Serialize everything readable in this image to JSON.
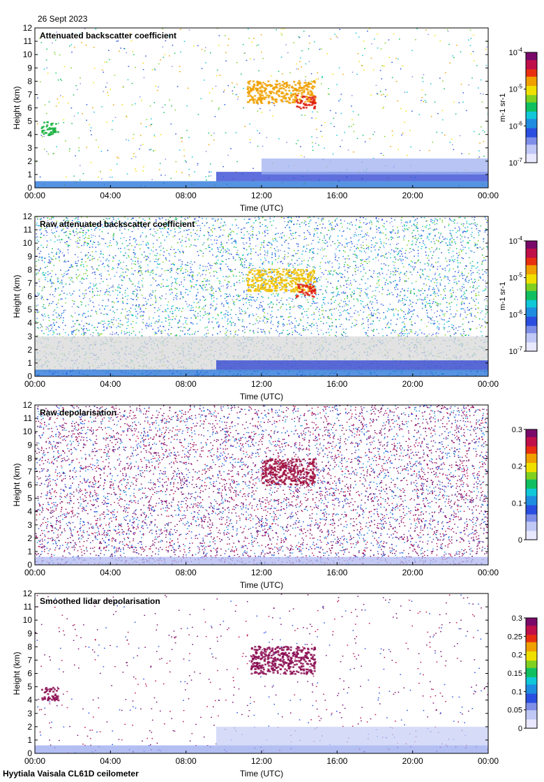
{
  "date_label": "26 Sept 2023",
  "footer_label": "Hyytiala Vaisala CL61D ceilometer",
  "chart_data": [
    {
      "type": "heatmap",
      "title": "Attenuated backscatter coefficient",
      "xlabel": "Time (UTC)",
      "ylabel": "Height (km)",
      "xlim_hours": [
        0,
        24
      ],
      "ylim": [
        0,
        12
      ],
      "xticks": [
        "00:00",
        "04:00",
        "08:00",
        "12:00",
        "16:00",
        "20:00",
        "00:00"
      ],
      "yticks": [
        0,
        1,
        2,
        3,
        4,
        5,
        6,
        7,
        8,
        9,
        10,
        11,
        12
      ],
      "colorbar": {
        "scale": "log",
        "ticks": [
          "10^-7",
          "10^-6",
          "10^-5",
          "10^-4"
        ],
        "unit": "m-1 sr-1",
        "palette": "white-blue-cyan-green-yellow-red-purple"
      },
      "background_noise": "sparse",
      "features": [
        {
          "name": "boundary-layer",
          "t0": 0,
          "t1": 24,
          "h0": 0,
          "h1": 0.5,
          "color": "#1e6fd8"
        },
        {
          "name": "boundary-layer-top",
          "t0": 9.6,
          "t1": 24,
          "h0": 0.5,
          "h1": 1.2,
          "color": "#2a3fd0"
        },
        {
          "name": "residual-layer",
          "t0": 12,
          "t1": 24,
          "h0": 1.0,
          "h1": 2.2,
          "color": "#9fb0f0"
        },
        {
          "name": "high-cloud",
          "t0": 11.2,
          "t1": 14.8,
          "h0": 6.4,
          "h1": 8.1,
          "color": "#f0a000"
        },
        {
          "name": "high-cloud-core",
          "t0": 13.8,
          "t1": 14.8,
          "h0": 6.0,
          "h1": 7.0,
          "color": "#e02010"
        },
        {
          "name": "mid-cloud",
          "t0": 0.3,
          "t1": 1.2,
          "h0": 4.0,
          "h1": 5.0,
          "color": "#19b040"
        }
      ]
    },
    {
      "type": "heatmap",
      "title": "Raw attenuated backscatter coefficient",
      "xlabel": "Time (UTC)",
      "ylabel": "Height (km)",
      "xlim_hours": [
        0,
        24
      ],
      "ylim": [
        0,
        12
      ],
      "xticks": [
        "00:00",
        "04:00",
        "08:00",
        "12:00",
        "16:00",
        "20:00",
        "00:00"
      ],
      "yticks": [
        0,
        1,
        2,
        3,
        4,
        5,
        6,
        7,
        8,
        9,
        10,
        11,
        12
      ],
      "colorbar": {
        "scale": "log",
        "ticks": [
          "10^-7",
          "10^-6",
          "10^-5",
          "10^-4"
        ],
        "unit": "m-1 sr-1",
        "palette": "white-blue-cyan-green-yellow-red-purple"
      },
      "background_noise": "dense-blue-green",
      "features": [
        {
          "name": "gray-noise-band",
          "t0": 0,
          "t1": 24,
          "h0": 0.4,
          "h1": 3.0,
          "color": "#d8d8d8"
        },
        {
          "name": "boundary-layer",
          "t0": 0,
          "t1": 24,
          "h0": 0,
          "h1": 0.5,
          "color": "#1e6fd8"
        },
        {
          "name": "boundary-layer-top",
          "t0": 9.6,
          "t1": 24,
          "h0": 0.5,
          "h1": 1.2,
          "color": "#2a3fd0"
        },
        {
          "name": "high-cloud",
          "t0": 11.2,
          "t1": 14.8,
          "h0": 6.4,
          "h1": 8.1,
          "color": "#f0c000"
        },
        {
          "name": "high-cloud-core",
          "t0": 13.8,
          "t1": 14.8,
          "h0": 6.0,
          "h1": 7.0,
          "color": "#e02010"
        }
      ]
    },
    {
      "type": "heatmap",
      "title": "Raw depolarisation",
      "xlabel": "Time (UTC)",
      "ylabel": "Height (km)",
      "xlim_hours": [
        0,
        24
      ],
      "ylim": [
        0,
        12
      ],
      "xticks": [
        "00:00",
        "04:00",
        "08:00",
        "12:00",
        "16:00",
        "20:00",
        "00:00"
      ],
      "yticks": [
        0,
        1,
        2,
        3,
        4,
        5,
        6,
        7,
        8,
        9,
        10,
        11,
        12
      ],
      "colorbar": {
        "scale": "linear",
        "ticks": [
          "0",
          "0.1",
          "0.2",
          "0.3"
        ],
        "unit": "",
        "palette": "white-blue-cyan-green-yellow-red-purple"
      },
      "background_noise": "dense-purple",
      "features": [
        {
          "name": "boundary-layer",
          "t0": 0,
          "t1": 24,
          "h0": 0,
          "h1": 0.6,
          "color": "#b0b8f0"
        },
        {
          "name": "high-cloud",
          "t0": 12,
          "t1": 14.8,
          "h0": 6.0,
          "h1": 8.0,
          "color": "#a01040"
        }
      ]
    },
    {
      "type": "heatmap",
      "title": "Smoothed lidar depolarisation",
      "xlabel": "Time (UTC)",
      "ylabel": "Height (km)",
      "xlim_hours": [
        0,
        24
      ],
      "ylim": [
        0,
        12
      ],
      "xticks": [
        "00:00",
        "04:00",
        "08:00",
        "12:00",
        "16:00",
        "20:00",
        "00:00"
      ],
      "yticks": [
        0,
        1,
        2,
        3,
        4,
        5,
        6,
        7,
        8,
        9,
        10,
        11,
        12
      ],
      "colorbar": {
        "scale": "linear",
        "ticks": [
          "0",
          "0.05",
          "0.1",
          "0.15",
          "0.2",
          "0.25",
          "0.3"
        ],
        "unit": "",
        "palette": "white-blue-cyan-green-yellow-red-purple"
      },
      "background_noise": "sparse-purple",
      "features": [
        {
          "name": "boundary-layer",
          "t0": 0,
          "t1": 24,
          "h0": 0,
          "h1": 0.6,
          "color": "#9aa8ee"
        },
        {
          "name": "boundary-layer-top",
          "t0": 9.6,
          "t1": 24,
          "h0": 0.6,
          "h1": 2.0,
          "color": "#c8d0f6"
        },
        {
          "name": "high-cloud",
          "t0": 11.4,
          "t1": 14.8,
          "h0": 6.0,
          "h1": 8.1,
          "color": "#8a0a50"
        },
        {
          "name": "mid-cloud",
          "t0": 0.3,
          "t1": 1.2,
          "h0": 4.0,
          "h1": 5.0,
          "color": "#8a0a50"
        }
      ]
    }
  ]
}
